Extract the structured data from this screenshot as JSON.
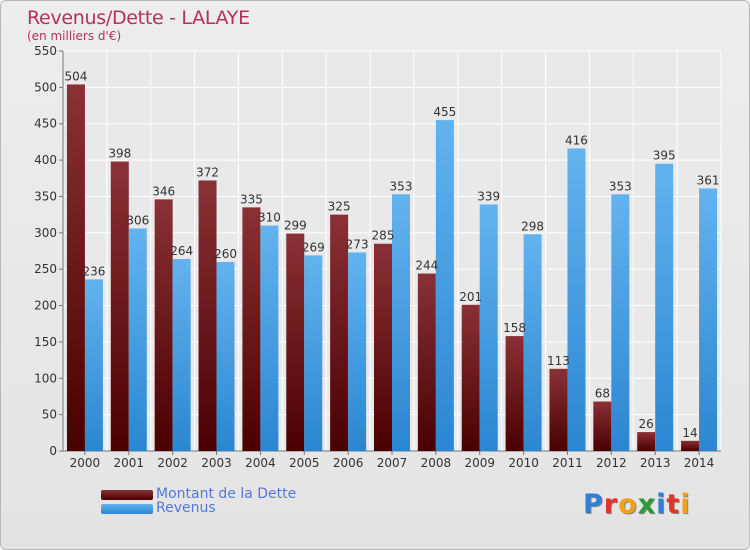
{
  "header": {
    "title": "Revenus/Dette - LALAYE",
    "subtitle": "(en milliers d'€)"
  },
  "legend": [
    {
      "label": "Montant de la Dette",
      "color": "#6b1a22"
    },
    {
      "label": "Revenus",
      "color": "#3f9ee6"
    }
  ],
  "logo": {
    "text": "Proxiti",
    "letters": [
      "P",
      "r",
      "o",
      "x",
      "i",
      "t",
      "i"
    ],
    "colors": [
      "#2f7fd4",
      "#e2342a",
      "#f5a01a",
      "#2a9a3a",
      "#2f7fd4",
      "#e2342a",
      "#f5a01a"
    ]
  },
  "colors": {
    "title": "#b5305a",
    "debt_top": "#8a3136",
    "debt_bottom": "#4a0000",
    "revenue_top": "#63b3ee",
    "revenue_bottom": "#2b86d1",
    "grid": "#ffffff",
    "axis_text": "#333333"
  },
  "chart_data": {
    "type": "bar",
    "title": "Revenus/Dette - LALAYE",
    "subtitle": "(en milliers d'€)",
    "xlabel": "",
    "ylabel": "",
    "ylim": [
      0,
      550
    ],
    "yticks": [
      0,
      50,
      100,
      150,
      200,
      250,
      300,
      350,
      400,
      450,
      500,
      550
    ],
    "grid": true,
    "legend_position": "bottom-left",
    "categories": [
      "2000",
      "2001",
      "2002",
      "2003",
      "2004",
      "2005",
      "2006",
      "2007",
      "2008",
      "2009",
      "2010",
      "2011",
      "2012",
      "2013",
      "2014"
    ],
    "series": [
      {
        "name": "Montant de la Dette",
        "values": [
          504,
          398,
          346,
          372,
          335,
          299,
          325,
          285,
          244,
          201,
          158,
          113,
          68,
          26,
          14
        ],
        "labels": [
          "504",
          "398",
          "346",
          "372",
          "335",
          "299",
          "325",
          "285",
          "244",
          "201",
          "158",
          "113",
          "68",
          "26",
          "14"
        ]
      },
      {
        "name": "Revenus",
        "values": [
          236,
          306,
          264,
          260,
          310,
          269,
          273,
          353,
          455,
          339,
          298,
          416,
          353,
          395,
          361
        ],
        "labels": [
          "236",
          "306",
          "264",
          "260",
          "310",
          "269",
          "273",
          "353",
          "455",
          "339",
          "298",
          "416",
          "353",
          "395",
          "361"
        ]
      }
    ]
  }
}
